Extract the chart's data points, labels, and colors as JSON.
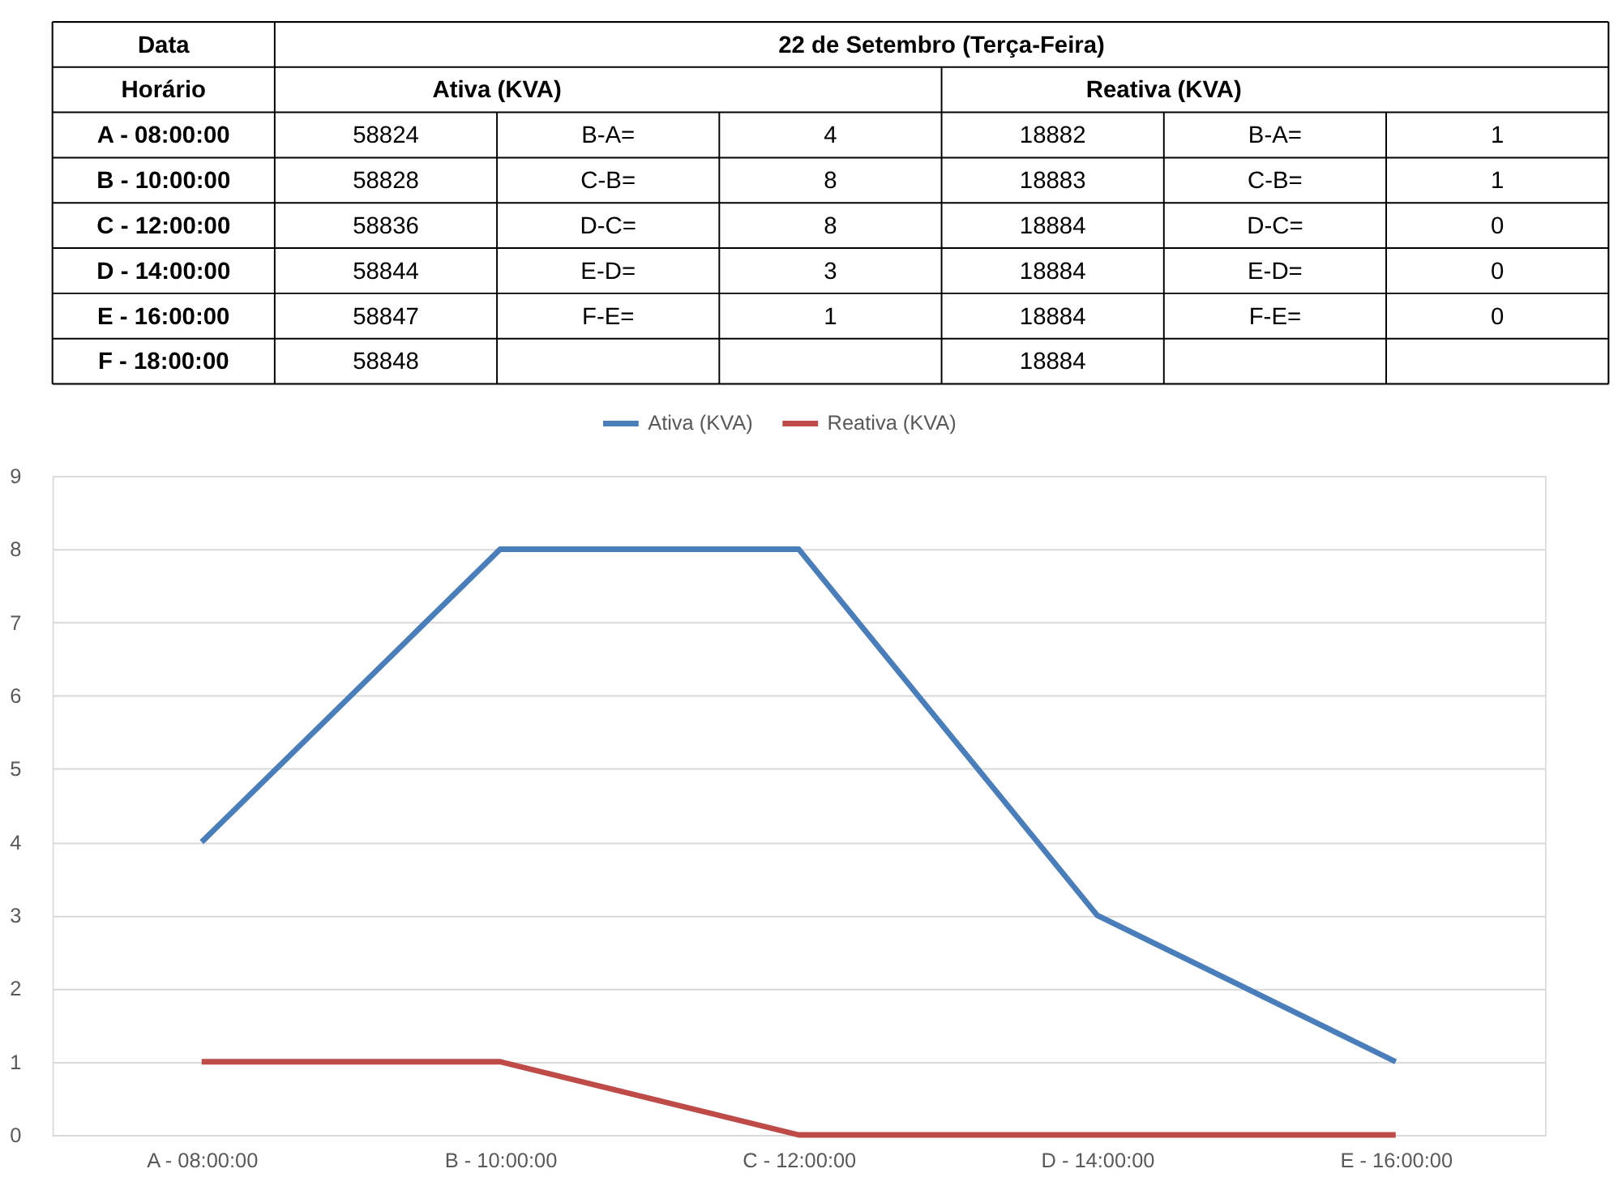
{
  "chart_data": {
    "type": "line",
    "title": "22 de Setembro (Terça-Feira)",
    "categories": [
      "A - 08:00:00",
      "B - 10:00:00",
      "C - 12:00:00",
      "D - 14:00:00",
      "E - 16:00:00"
    ],
    "series": [
      {
        "name": "Ativa (KVA)",
        "color": "#4a7ebb",
        "values": [
          4,
          8,
          8,
          3,
          1
        ]
      },
      {
        "name": "Reativa (KVA)",
        "color": "#be4b48",
        "values": [
          1,
          1,
          0,
          0,
          0
        ]
      }
    ],
    "ylim": [
      0,
      9
    ],
    "yticks": [
      0,
      1,
      2,
      3,
      4,
      5,
      6,
      7,
      8,
      9
    ],
    "grid": "y",
    "legend": "top",
    "marker": "none",
    "line_style": "solid",
    "annotations": [
      "Data",
      "Horário",
      "A - 08:00:00",
      "58824",
      "B-A=",
      "4",
      "18882",
      "B-A=",
      "1",
      "B - 10:00:00",
      "58828",
      "C-B=",
      "8",
      "18883",
      "C-B=",
      "1",
      "C - 12:00:00",
      "58836",
      "D-C=",
      "8",
      "18884",
      "D-C=",
      "0",
      "D - 14:00:00",
      "58844",
      "E-D=",
      "3",
      "18884",
      "E-D=",
      "0",
      "E - 16:00:00",
      "58847",
      "F-E=",
      "1",
      "18884",
      "F-E=",
      "0",
      "F - 18:00:00",
      "58848",
      null,
      null,
      "18884",
      null,
      null
    ]
  }
}
